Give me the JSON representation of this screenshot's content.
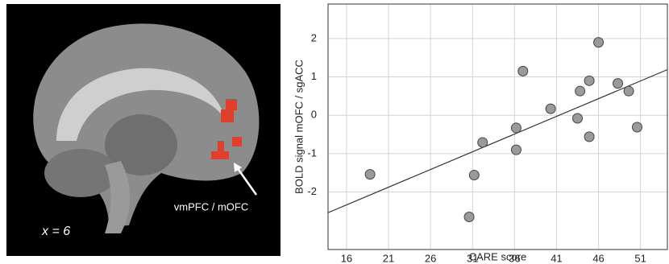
{
  "image": {
    "annotation": "vmPFC / mOFC",
    "slice_label": "x = 6"
  },
  "chart_data": {
    "type": "scatter",
    "x_label": "CARE score",
    "y_label": "BOLD signal mOFC / sgACC",
    "x": [
      18.8,
      30.6,
      31.2,
      32.2,
      36.2,
      36.2,
      37.0,
      40.3,
      43.5,
      43.8,
      44.9,
      44.9,
      46.0,
      48.3,
      49.6,
      50.6
    ],
    "values": [
      -1.54,
      -2.65,
      -1.56,
      -0.71,
      -0.33,
      -0.9,
      1.15,
      0.17,
      -0.08,
      0.63,
      0.9,
      -0.56,
      1.9,
      0.83,
      0.63,
      -0.31
    ],
    "color": "#9a9a9a",
    "fit_line": {
      "x": [
        13.8,
        54.2
      ],
      "y": [
        -2.54,
        1.19
      ]
    },
    "xlim": [
      13.8,
      54.2
    ],
    "ylim": [
      -3.5,
      2.9
    ],
    "xticks": [
      16,
      21,
      26,
      31,
      36,
      41,
      46,
      51
    ],
    "yticks": [
      -2,
      -1,
      0,
      1,
      2
    ],
    "grid": true
  }
}
